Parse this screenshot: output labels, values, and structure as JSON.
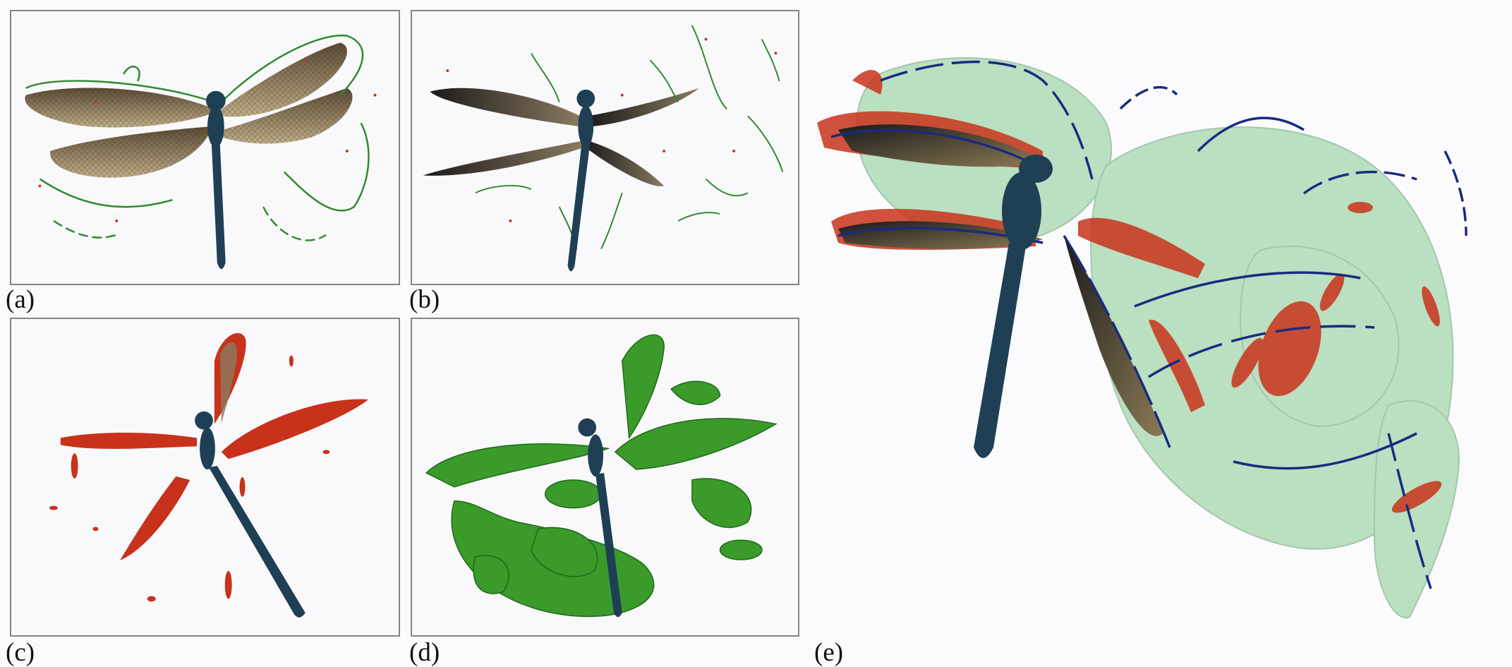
{
  "figure": {
    "panels": [
      {
        "id": "a",
        "label": "(a)"
      },
      {
        "id": "b",
        "label": "(b)"
      },
      {
        "id": "c",
        "label": "(c)"
      },
      {
        "id": "d",
        "label": "(d)"
      },
      {
        "id": "e",
        "label": "(e)"
      }
    ]
  },
  "colors": {
    "background": "#fbfbfd",
    "panel_border": "#8a8480",
    "wing_fill": "#7d6a50",
    "body": "#1f3f55",
    "vortex_line_green": "#2f8a2a",
    "vortex_core_red": "#c8321a",
    "isosurface_green": "#3a9a2a",
    "vortex_line_blue": "#1a2a80",
    "translucent_green": "#6cc07a"
  }
}
